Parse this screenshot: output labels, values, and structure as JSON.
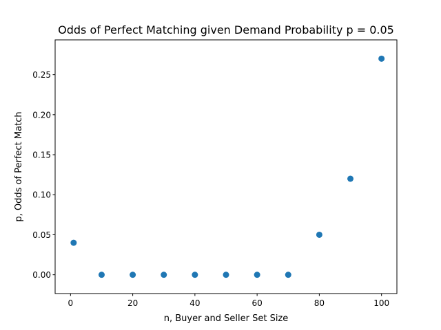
{
  "chart_data": {
    "type": "scatter",
    "title": "Odds of Perfect Matching given Demand Probability p = 0.05",
    "xlabel": "n, Buyer and Seller Set Size",
    "ylabel": "p, Odds of Perfect Match",
    "xlim": [
      -4.95,
      104.95
    ],
    "ylim": [
      -0.0235,
      0.2935
    ],
    "xticks": [
      0,
      20,
      40,
      60,
      80,
      100
    ],
    "xtick_labels": [
      "0",
      "20",
      "40",
      "60",
      "80",
      "100"
    ],
    "yticks": [
      0.0,
      0.05,
      0.1,
      0.15,
      0.2,
      0.25
    ],
    "ytick_labels": [
      "0.00",
      "0.05",
      "0.10",
      "0.15",
      "0.20",
      "0.25"
    ],
    "grid": false,
    "marker_color": "#1f77b4",
    "series": [
      {
        "x": [
          1,
          10,
          20,
          30,
          40,
          50,
          60,
          70,
          80,
          90,
          100
        ],
        "y": [
          0.04,
          0.0,
          0.0,
          0.0,
          0.0,
          0.0,
          0.0,
          0.0,
          0.05,
          0.12,
          0.27
        ]
      }
    ]
  }
}
